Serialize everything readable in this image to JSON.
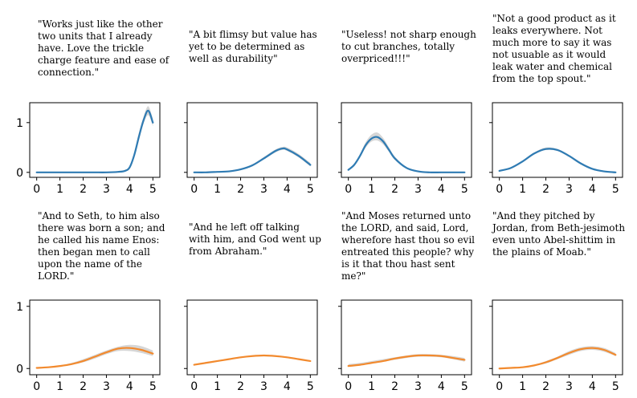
{
  "colors": {
    "top_row_line": "#2f7bb3",
    "bottom_row_line": "#f28a2e",
    "band": "#c8c8c8",
    "axis": "#000000"
  },
  "chart_data": [
    {
      "type": "line",
      "quote": "\"Works just like the other two units that I already have. Love the trickle charge feature and ease of connection.\"",
      "x": [
        0,
        0.5,
        1,
        1.5,
        2,
        2.5,
        3,
        3.5,
        3.8,
        4,
        4.2,
        4.4,
        4.6,
        4.8,
        5
      ],
      "series": [
        {
          "values": [
            0,
            0,
            0,
            0,
            0,
            0,
            0,
            0.01,
            0.03,
            0.1,
            0.35,
            0.72,
            1.05,
            1.24,
            1.0
          ]
        }
      ],
      "band_upper": [
        0,
        0,
        0,
        0,
        0,
        0,
        0,
        0.02,
        0.05,
        0.13,
        0.4,
        0.8,
        1.12,
        1.33,
        1.08
      ],
      "band_lower": [
        0,
        0,
        0,
        0,
        0,
        0,
        0,
        0,
        0.02,
        0.07,
        0.3,
        0.64,
        0.98,
        1.15,
        0.93
      ],
      "xticks": [
        "0",
        "1",
        "2",
        "3",
        "4",
        "5"
      ],
      "yticks": [
        "0",
        "1"
      ],
      "xlim": [
        -0.3,
        5.3
      ],
      "ylim": [
        -0.1,
        1.4
      ],
      "show_ytick_labels": true
    },
    {
      "type": "line",
      "quote": "\"A bit flimsy but value has yet to be determined as well as durability\"",
      "x": [
        0,
        0.5,
        1,
        1.5,
        2,
        2.5,
        3,
        3.5,
        3.8,
        4,
        4.5,
        5
      ],
      "series": [
        {
          "values": [
            0,
            0,
            0.01,
            0.02,
            0.06,
            0.14,
            0.28,
            0.43,
            0.48,
            0.46,
            0.33,
            0.15
          ]
        }
      ],
      "band_upper": [
        0,
        0,
        0.01,
        0.03,
        0.08,
        0.16,
        0.31,
        0.46,
        0.51,
        0.5,
        0.37,
        0.19
      ],
      "band_lower": [
        0,
        0,
        0.01,
        0.01,
        0.05,
        0.12,
        0.26,
        0.4,
        0.45,
        0.43,
        0.3,
        0.12
      ],
      "xticks": [
        "0",
        "1",
        "2",
        "3",
        "4",
        "5"
      ],
      "yticks": [
        "0",
        "1"
      ],
      "xlim": [
        -0.3,
        5.3
      ],
      "ylim": [
        -0.1,
        1.4
      ],
      "show_ytick_labels": false
    },
    {
      "type": "line",
      "quote": "\"Useless! not sharp enough to cut branches, totally overpriced!!!\"",
      "x": [
        0,
        0.25,
        0.5,
        0.75,
        1,
        1.25,
        1.5,
        1.75,
        2,
        2.5,
        3,
        3.5,
        4,
        4.5,
        5
      ],
      "series": [
        {
          "values": [
            0.05,
            0.15,
            0.33,
            0.55,
            0.68,
            0.71,
            0.62,
            0.45,
            0.28,
            0.09,
            0.02,
            0,
            0,
            0,
            0
          ]
        }
      ],
      "band_upper": [
        0.06,
        0.17,
        0.37,
        0.61,
        0.76,
        0.8,
        0.69,
        0.5,
        0.32,
        0.1,
        0.02,
        0,
        0,
        0,
        0
      ],
      "band_lower": [
        0.04,
        0.13,
        0.3,
        0.5,
        0.62,
        0.64,
        0.56,
        0.41,
        0.25,
        0.08,
        0.02,
        0,
        0,
        0,
        0
      ],
      "xticks": [
        "0",
        "1",
        "2",
        "3",
        "4",
        "5"
      ],
      "yticks": [
        "0",
        "1"
      ],
      "xlim": [
        -0.3,
        5.3
      ],
      "ylim": [
        -0.1,
        1.4
      ],
      "show_ytick_labels": false
    },
    {
      "type": "line",
      "quote": "\"Not a good product as it leaks everywhere. Not much more to say it was not usuable as it would leak water and chemical from the top spout.\"",
      "x": [
        0,
        0.5,
        1,
        1.5,
        2,
        2.5,
        3,
        3.5,
        4,
        4.5,
        5
      ],
      "series": [
        {
          "values": [
            0.03,
            0.09,
            0.22,
            0.38,
            0.47,
            0.45,
            0.33,
            0.18,
            0.07,
            0.02,
            0
          ]
        }
      ],
      "band_upper": [
        0.04,
        0.1,
        0.24,
        0.4,
        0.5,
        0.47,
        0.35,
        0.2,
        0.08,
        0.02,
        0
      ],
      "band_lower": [
        0.02,
        0.08,
        0.2,
        0.36,
        0.45,
        0.43,
        0.31,
        0.16,
        0.06,
        0.02,
        0
      ],
      "xticks": [
        "0",
        "1",
        "2",
        "3",
        "4",
        "5"
      ],
      "yticks": [
        "0",
        "1"
      ],
      "xlim": [
        -0.3,
        5.3
      ],
      "ylim": [
        -0.1,
        1.4
      ],
      "show_ytick_labels": false
    },
    {
      "type": "line",
      "quote": "\"And to Seth, to him also there was born a son; and he called his name Enos: then began men to call upon the name of the LORD.\"",
      "x": [
        0,
        0.5,
        1,
        1.5,
        2,
        2.5,
        3,
        3.5,
        4,
        4.5,
        5
      ],
      "series": [
        {
          "values": [
            0.01,
            0.02,
            0.04,
            0.07,
            0.12,
            0.19,
            0.26,
            0.32,
            0.33,
            0.3,
            0.24
          ]
        }
      ],
      "band_upper": [
        0.01,
        0.02,
        0.05,
        0.09,
        0.15,
        0.22,
        0.29,
        0.35,
        0.38,
        0.36,
        0.29
      ],
      "band_lower": [
        0.01,
        0.02,
        0.03,
        0.06,
        0.1,
        0.16,
        0.23,
        0.28,
        0.28,
        0.25,
        0.2
      ],
      "xticks": [
        "0",
        "1",
        "2",
        "3",
        "4",
        "5"
      ],
      "yticks": [
        "0",
        "1"
      ],
      "xlim": [
        -0.3,
        5.3
      ],
      "ylim": [
        -0.1,
        1.1
      ],
      "show_ytick_labels": true
    },
    {
      "type": "line",
      "quote": "\"And he left off talking with him, and God went up from Abraham.\"",
      "x": [
        0,
        0.5,
        1,
        1.5,
        2,
        2.5,
        3,
        3.5,
        4,
        4.5,
        5
      ],
      "series": [
        {
          "values": [
            0.06,
            0.09,
            0.12,
            0.15,
            0.18,
            0.2,
            0.21,
            0.2,
            0.18,
            0.15,
            0.12
          ]
        }
      ],
      "band_upper": [
        0.07,
        0.1,
        0.13,
        0.16,
        0.19,
        0.21,
        0.22,
        0.21,
        0.19,
        0.16,
        0.13
      ],
      "band_lower": [
        0.05,
        0.08,
        0.11,
        0.14,
        0.17,
        0.19,
        0.2,
        0.19,
        0.17,
        0.14,
        0.11
      ],
      "xticks": [
        "0",
        "1",
        "2",
        "3",
        "4",
        "5"
      ],
      "yticks": [
        "0",
        "1"
      ],
      "xlim": [
        -0.3,
        5.3
      ],
      "ylim": [
        -0.1,
        1.1
      ],
      "show_ytick_labels": false
    },
    {
      "type": "line",
      "quote": "\"And Moses returned unto the LORD, and said, Lord, wherefore hast thou so evil entreated this people? why is it that thou hast sent me?\"",
      "x": [
        0,
        0.5,
        1,
        1.5,
        2,
        2.5,
        3,
        3.5,
        4,
        4.5,
        5
      ],
      "series": [
        {
          "values": [
            0.04,
            0.06,
            0.09,
            0.12,
            0.16,
            0.19,
            0.21,
            0.21,
            0.2,
            0.17,
            0.14
          ]
        }
      ],
      "band_upper": [
        0.07,
        0.09,
        0.12,
        0.15,
        0.18,
        0.21,
        0.23,
        0.23,
        0.22,
        0.2,
        0.17
      ],
      "band_lower": [
        0.03,
        0.05,
        0.08,
        0.11,
        0.14,
        0.17,
        0.19,
        0.19,
        0.18,
        0.15,
        0.11
      ],
      "xticks": [
        "0",
        "1",
        "2",
        "3",
        "4",
        "5"
      ],
      "yticks": [
        "0",
        "1"
      ],
      "xlim": [
        -0.3,
        5.3
      ],
      "ylim": [
        -0.1,
        1.1
      ],
      "show_ytick_labels": false
    },
    {
      "type": "line",
      "quote": "\"And they pitched by Jordan, from Beth-jesimoth even unto Abel-shittim in the plains of Moab.\"",
      "x": [
        0,
        0.5,
        1,
        1.5,
        2,
        2.5,
        3,
        3.5,
        4,
        4.5,
        5
      ],
      "series": [
        {
          "values": [
            0,
            0.01,
            0.02,
            0.05,
            0.1,
            0.17,
            0.25,
            0.31,
            0.33,
            0.3,
            0.22
          ]
        }
      ],
      "band_upper": [
        0,
        0.01,
        0.03,
        0.06,
        0.12,
        0.19,
        0.28,
        0.34,
        0.36,
        0.33,
        0.25
      ],
      "band_lower": [
        0,
        0.01,
        0.02,
        0.04,
        0.08,
        0.15,
        0.22,
        0.28,
        0.3,
        0.27,
        0.2
      ],
      "xticks": [
        "0",
        "1",
        "2",
        "3",
        "4",
        "5"
      ],
      "yticks": [
        "0",
        "1"
      ],
      "xlim": [
        -0.3,
        5.3
      ],
      "ylim": [
        -0.1,
        1.1
      ],
      "show_ytick_labels": false
    }
  ]
}
